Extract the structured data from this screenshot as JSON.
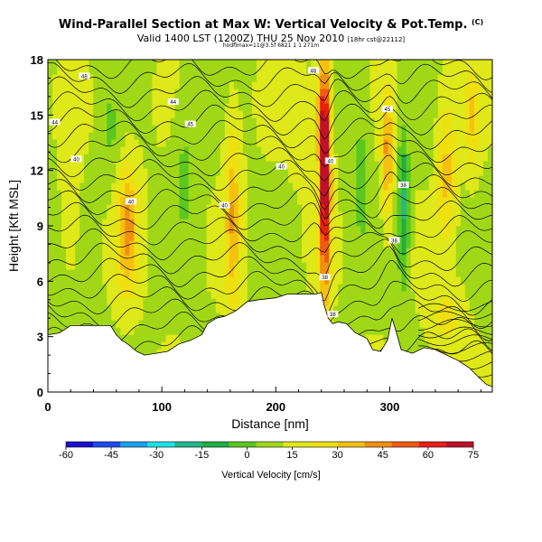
{
  "title": {
    "main": "Wind-Parallel Section at Max W: Vertical Velocity & Pot.Temp.",
    "mark": "(C)",
    "valid": "Valid 1400 LST (1200Z) THU 25 Nov 2010",
    "valid_small": "[18hr cst@22112]",
    "sub": "hodflmax=11@3.5f 6821 1 1 271m"
  },
  "chart_data": {
    "type": "heatmap",
    "title": "Wind-Parallel Section at Max W: Vertical Velocity & Pot.Temp.",
    "xlabel": "Distance [nm]",
    "ylabel": "Height [Kft MSL]",
    "xlim": [
      0,
      390
    ],
    "ylim": [
      0,
      18
    ],
    "xticks": [
      "0",
      "100",
      "200",
      "300"
    ],
    "xtick_values": [
      0,
      100,
      200,
      300
    ],
    "yticks": [
      "0",
      "3",
      "6",
      "9",
      "12",
      "15",
      "18"
    ],
    "ytick_values": [
      0,
      3,
      6,
      9,
      12,
      15,
      18
    ],
    "terrain": [
      [
        0,
        3.1
      ],
      [
        10,
        3.2
      ],
      [
        20,
        3.6
      ],
      [
        40,
        3.6
      ],
      [
        55,
        3.6
      ],
      [
        60,
        3.1
      ],
      [
        65,
        2.8
      ],
      [
        70,
        2.6
      ],
      [
        78,
        2.2
      ],
      [
        85,
        2.0
      ],
      [
        95,
        2.1
      ],
      [
        105,
        2.2
      ],
      [
        115,
        2.6
      ],
      [
        125,
        2.8
      ],
      [
        135,
        3.1
      ],
      [
        140,
        3.7
      ],
      [
        148,
        4.0
      ],
      [
        155,
        4.1
      ],
      [
        165,
        4.4
      ],
      [
        175,
        4.9
      ],
      [
        185,
        5.0
      ],
      [
        200,
        5.1
      ],
      [
        210,
        5.3
      ],
      [
        220,
        5.3
      ],
      [
        235,
        5.3
      ],
      [
        240,
        5.4
      ],
      [
        242,
        4.8
      ],
      [
        246,
        4.0
      ],
      [
        250,
        3.7
      ],
      [
        255,
        3.8
      ],
      [
        262,
        3.7
      ],
      [
        270,
        3.2
      ],
      [
        280,
        2.9
      ],
      [
        285,
        2.3
      ],
      [
        292,
        2.2
      ],
      [
        298,
        2.8
      ],
      [
        302,
        4.0
      ],
      [
        306,
        3.2
      ],
      [
        310,
        2.3
      ],
      [
        320,
        2.1
      ],
      [
        330,
        2.4
      ],
      [
        340,
        2.3
      ],
      [
        350,
        2.0
      ],
      [
        360,
        1.7
      ],
      [
        370,
        1.3
      ],
      [
        378,
        0.8
      ],
      [
        385,
        0.4
      ],
      [
        390,
        0.3
      ]
    ],
    "w_features": [
      {
        "x": 70,
        "z": 8.8,
        "sx": 10,
        "sz": 3.5,
        "w": 30
      },
      {
        "x": 162,
        "z": 9.5,
        "sx": 7,
        "sz": 5,
        "w": 27
      },
      {
        "x": 243,
        "z": 11.5,
        "sx": 5,
        "sz": 6,
        "w": 68
      },
      {
        "x": 240,
        "z": 15,
        "sx": 7,
        "sz": 2.5,
        "w": 20
      },
      {
        "x": 298,
        "z": 13,
        "sx": 5,
        "sz": 3.5,
        "w": 30
      },
      {
        "x": 312,
        "z": 10,
        "sx": 5,
        "sz": 4,
        "w": -28
      },
      {
        "x": 350,
        "z": 12,
        "sx": 8,
        "sz": 4,
        "w": 22
      },
      {
        "x": 372,
        "z": 15,
        "sx": 6,
        "sz": 3,
        "w": 18
      },
      {
        "x": 120,
        "z": 12,
        "sx": 10,
        "sz": 4,
        "w": -10
      },
      {
        "x": 55,
        "z": 14,
        "sx": 8,
        "sz": 3,
        "w": -8
      },
      {
        "x": 275,
        "z": 12,
        "sx": 8,
        "sz": 4,
        "w": -12
      },
      {
        "x": 220,
        "z": 15,
        "sx": 8,
        "sz": 3,
        "w": 10
      },
      {
        "x": 20,
        "z": 10,
        "sx": 8,
        "sz": 4,
        "w": 8
      },
      {
        "x": 350,
        "z": 4,
        "sx": 15,
        "sz": 2,
        "w": 12
      }
    ],
    "contour_labels": [
      {
        "x": 32,
        "z": 17.1,
        "text": "48"
      },
      {
        "x": 110,
        "z": 15.7,
        "text": "44"
      },
      {
        "x": 6,
        "z": 14.6,
        "text": "44"
      },
      {
        "x": 125,
        "z": 14.5,
        "text": "45"
      },
      {
        "x": 25,
        "z": 12.6,
        "text": "40"
      },
      {
        "x": 73,
        "z": 10.3,
        "text": "40"
      },
      {
        "x": 155,
        "z": 10.1,
        "text": "40"
      },
      {
        "x": 205,
        "z": 12.2,
        "text": "40"
      },
      {
        "x": 233,
        "z": 17.4,
        "text": "48"
      },
      {
        "x": 248,
        "z": 12.5,
        "text": "40"
      },
      {
        "x": 298,
        "z": 15.3,
        "text": "45"
      },
      {
        "x": 312,
        "z": 11.2,
        "text": "38"
      },
      {
        "x": 304,
        "z": 8.2,
        "text": "38"
      },
      {
        "x": 243,
        "z": 6.2,
        "text": "38"
      },
      {
        "x": 250,
        "z": 4.2,
        "text": "38"
      }
    ],
    "colorbar": {
      "label": "Vertical Velocity [cm/s]",
      "range": [
        -60,
        75
      ],
      "ticks": [
        "-60",
        "-45",
        "-30",
        "-15",
        "0",
        "15",
        "30",
        "45",
        "60",
        "75"
      ],
      "tick_values": [
        -60,
        -45,
        -30,
        -15,
        0,
        15,
        30,
        45,
        60,
        75
      ],
      "colors": [
        "#1a10d0",
        "#1c4cf0",
        "#1aa0f0",
        "#1ae0e8",
        "#22b88a",
        "#1fb045",
        "#5ac820",
        "#a0d818",
        "#dfe818",
        "#f0e010",
        "#f5c010",
        "#f09010",
        "#f05a10",
        "#e82010",
        "#c0102a"
      ]
    }
  }
}
